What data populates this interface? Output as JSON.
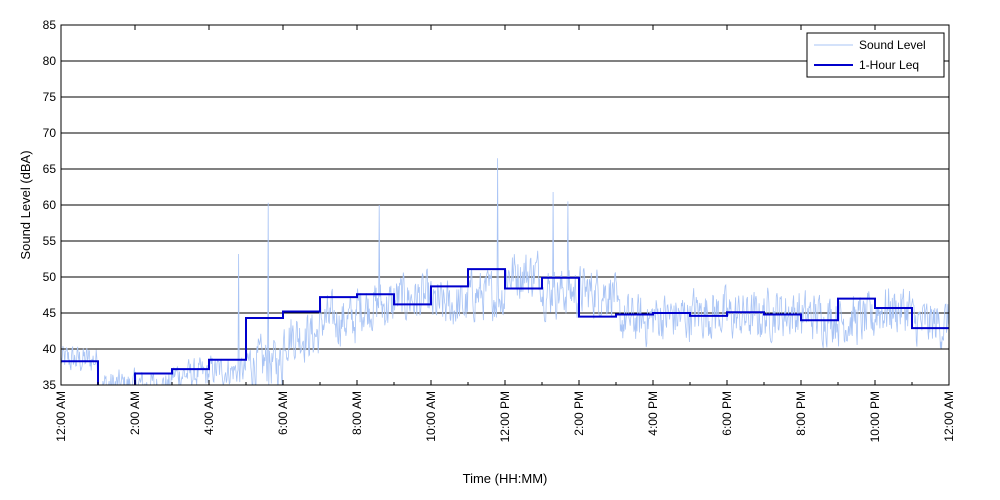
{
  "chart_data": {
    "type": "line",
    "title": "",
    "xlabel": "Time (HH:MM)",
    "ylabel": "Sound Level (dBA)",
    "ylim": [
      35,
      85
    ],
    "yticks": [
      35,
      40,
      45,
      50,
      55,
      60,
      65,
      70,
      75,
      80,
      85
    ],
    "xlim_hours": [
      0,
      24
    ],
    "xticks": [
      {
        "hour": 0,
        "label": "12:00 AM"
      },
      {
        "hour": 2,
        "label": "2:00 AM"
      },
      {
        "hour": 4,
        "label": "4:00 AM"
      },
      {
        "hour": 6,
        "label": "6:00 AM"
      },
      {
        "hour": 8,
        "label": "8:00 AM"
      },
      {
        "hour": 10,
        "label": "10:00 AM"
      },
      {
        "hour": 12,
        "label": "12:00 PM"
      },
      {
        "hour": 14,
        "label": "2:00 PM"
      },
      {
        "hour": 16,
        "label": "4:00 PM"
      },
      {
        "hour": 18,
        "label": "6:00 PM"
      },
      {
        "hour": 20,
        "label": "8:00 PM"
      },
      {
        "hour": 22,
        "label": "10:00 PM"
      },
      {
        "hour": 24,
        "label": "12:00 AM"
      }
    ],
    "grid": "horizontal",
    "legend_position": "top-right",
    "series": [
      {
        "name": "Sound Level",
        "color": "#a9c4f5",
        "sampled_hourly_mean_db": [
          38.5,
          35,
          35,
          36.5,
          37,
          38,
          42,
          44,
          46,
          47,
          46,
          47.5,
          50.5,
          48,
          48,
          44,
          44.5,
          45,
          44.5,
          45,
          44.5,
          44,
          45.5,
          43.5
        ],
        "peaks": [
          {
            "hour": 4.8,
            "db": 53.2
          },
          {
            "hour": 5.6,
            "db": 60.3
          },
          {
            "hour": 8.6,
            "db": 60.0
          },
          {
            "hour": 11.8,
            "db": 66.5
          },
          {
            "hour": 13.3,
            "db": 61.8
          },
          {
            "hour": 13.7,
            "db": 60.5
          }
        ]
      },
      {
        "name": "1-Hour Leq",
        "color": "#0000cc",
        "hours": [
          0,
          1,
          2,
          3,
          4,
          5,
          6,
          7,
          8,
          9,
          10,
          11,
          12,
          13,
          14,
          15,
          16,
          17,
          18,
          19,
          20,
          21,
          22,
          23
        ],
        "values": [
          38.3,
          34.0,
          36.6,
          37.2,
          38.5,
          44.3,
          45.2,
          47.2,
          47.6,
          46.2,
          48.7,
          51.1,
          48.4,
          49.9,
          44.5,
          44.8,
          45.0,
          44.6,
          45.1,
          44.8,
          44.0,
          47.0,
          45.7,
          42.9
        ]
      }
    ]
  }
}
